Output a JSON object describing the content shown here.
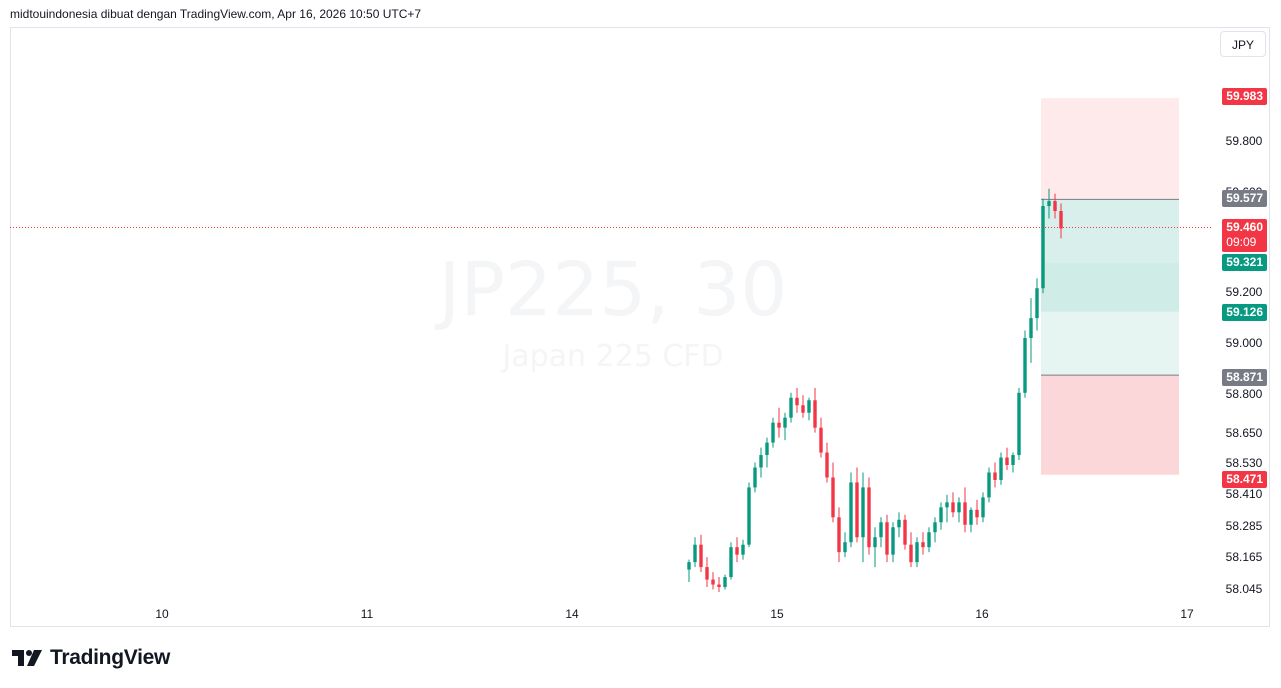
{
  "header": {
    "text": "midtouindonesia dibuat dengan TradingView.com, Apr 16, 2026 10:50 UTC+7"
  },
  "currency_button": "JPY",
  "logo": {
    "text": "TradingView"
  },
  "watermark": {
    "symbol": "JP225, 30",
    "description": "Japan 225 CFD"
  },
  "price_labels": {
    "stop_loss_top": "59.983",
    "upper_line": "59.577",
    "current": "59.460",
    "countdown": "09:09",
    "tp1": "59.321",
    "tp2": "59.126",
    "entry": "58.871",
    "stop_loss_bottom": "58.471"
  },
  "colors": {
    "up": "#089981",
    "down": "#f23645",
    "red_zone": "#f23645",
    "green_zone": "#089981",
    "grey_label": "#787b86"
  },
  "chart_data": {
    "type": "candlestick",
    "symbol": "JP225, 30",
    "currency": "JPY",
    "x_ticks": [
      "10",
      "11",
      "14",
      "15",
      "16",
      "17"
    ],
    "y_ticks": [
      "59.800",
      "59.600",
      "59.200",
      "59.000",
      "58.800",
      "58.650",
      "58.530",
      "58.410",
      "58.285",
      "58.165",
      "58.045"
    ],
    "ylim": [
      58.0,
      60.2
    ],
    "current_price": 59.46,
    "position": {
      "stop_loss_upper": 59.983,
      "level_upper": 59.577,
      "take_profit_1": 59.321,
      "take_profit_2": 59.126,
      "entry": 58.871,
      "stop_loss_lower": 58.471
    },
    "candles": [
      [
        58.09,
        58.13,
        58.04,
        58.12
      ],
      [
        58.12,
        58.22,
        58.1,
        58.19
      ],
      [
        58.19,
        58.23,
        58.08,
        58.1
      ],
      [
        58.1,
        58.14,
        58.02,
        58.05
      ],
      [
        58.05,
        58.08,
        58.01,
        58.03
      ],
      [
        58.03,
        58.06,
        58.0,
        58.02
      ],
      [
        58.02,
        58.07,
        58.01,
        58.06
      ],
      [
        58.06,
        58.2,
        58.05,
        58.18
      ],
      [
        58.18,
        58.22,
        58.12,
        58.15
      ],
      [
        58.15,
        58.21,
        58.13,
        58.19
      ],
      [
        58.19,
        58.44,
        58.18,
        58.42
      ],
      [
        58.42,
        58.52,
        58.4,
        58.5
      ],
      [
        58.5,
        58.58,
        58.46,
        58.55
      ],
      [
        58.55,
        58.62,
        58.5,
        58.6
      ],
      [
        58.6,
        58.7,
        58.58,
        58.68
      ],
      [
        58.68,
        58.74,
        58.62,
        58.66
      ],
      [
        58.66,
        58.72,
        58.61,
        58.7
      ],
      [
        58.7,
        58.8,
        58.68,
        58.78
      ],
      [
        58.78,
        58.82,
        58.72,
        58.75
      ],
      [
        58.75,
        58.79,
        58.7,
        58.72
      ],
      [
        58.72,
        58.78,
        58.69,
        58.77
      ],
      [
        58.77,
        58.82,
        58.64,
        58.66
      ],
      [
        58.66,
        58.7,
        58.54,
        58.56
      ],
      [
        58.56,
        58.6,
        58.44,
        58.46
      ],
      [
        58.46,
        58.52,
        58.28,
        58.3
      ],
      [
        58.3,
        58.34,
        58.12,
        58.16
      ],
      [
        58.16,
        58.24,
        58.14,
        58.2
      ],
      [
        58.2,
        58.48,
        58.18,
        58.44
      ],
      [
        58.44,
        58.5,
        58.2,
        58.22
      ],
      [
        58.22,
        58.48,
        58.12,
        58.42
      ],
      [
        58.42,
        58.46,
        58.15,
        58.18
      ],
      [
        58.18,
        58.26,
        58.1,
        58.22
      ],
      [
        58.22,
        58.3,
        58.18,
        58.28
      ],
      [
        58.28,
        58.31,
        58.12,
        58.15
      ],
      [
        58.15,
        58.28,
        58.12,
        58.26
      ],
      [
        58.26,
        58.32,
        58.22,
        58.29
      ],
      [
        58.29,
        58.31,
        58.17,
        58.19
      ],
      [
        58.19,
        58.24,
        58.1,
        58.12
      ],
      [
        58.12,
        58.22,
        58.1,
        58.2
      ],
      [
        58.2,
        58.24,
        58.15,
        58.18
      ],
      [
        58.18,
        58.26,
        58.16,
        58.24
      ],
      [
        58.24,
        58.3,
        58.2,
        58.28
      ],
      [
        58.28,
        58.36,
        58.25,
        58.34
      ],
      [
        58.34,
        58.39,
        58.28,
        58.36
      ],
      [
        58.36,
        58.4,
        58.3,
        58.32
      ],
      [
        58.32,
        58.38,
        58.28,
        58.36
      ],
      [
        58.36,
        58.42,
        58.24,
        58.27
      ],
      [
        58.27,
        58.34,
        58.24,
        58.33
      ],
      [
        58.33,
        58.37,
        58.27,
        58.3
      ],
      [
        58.3,
        58.4,
        58.28,
        58.38
      ],
      [
        58.38,
        58.5,
        58.36,
        58.48
      ],
      [
        58.48,
        58.52,
        58.42,
        58.45
      ],
      [
        58.45,
        58.56,
        58.43,
        58.54
      ],
      [
        58.54,
        58.58,
        58.49,
        58.51
      ],
      [
        58.51,
        58.56,
        58.48,
        58.55
      ],
      [
        58.55,
        58.82,
        58.53,
        58.8
      ],
      [
        58.8,
        59.05,
        58.78,
        59.02
      ],
      [
        59.02,
        59.18,
        58.92,
        59.1
      ],
      [
        59.1,
        59.26,
        59.05,
        59.22
      ],
      [
        59.22,
        59.58,
        59.2,
        59.55
      ],
      [
        59.55,
        59.62,
        59.5,
        59.57
      ],
      [
        59.57,
        59.6,
        59.5,
        59.53
      ],
      [
        59.53,
        59.56,
        59.42,
        59.46
      ]
    ]
  }
}
